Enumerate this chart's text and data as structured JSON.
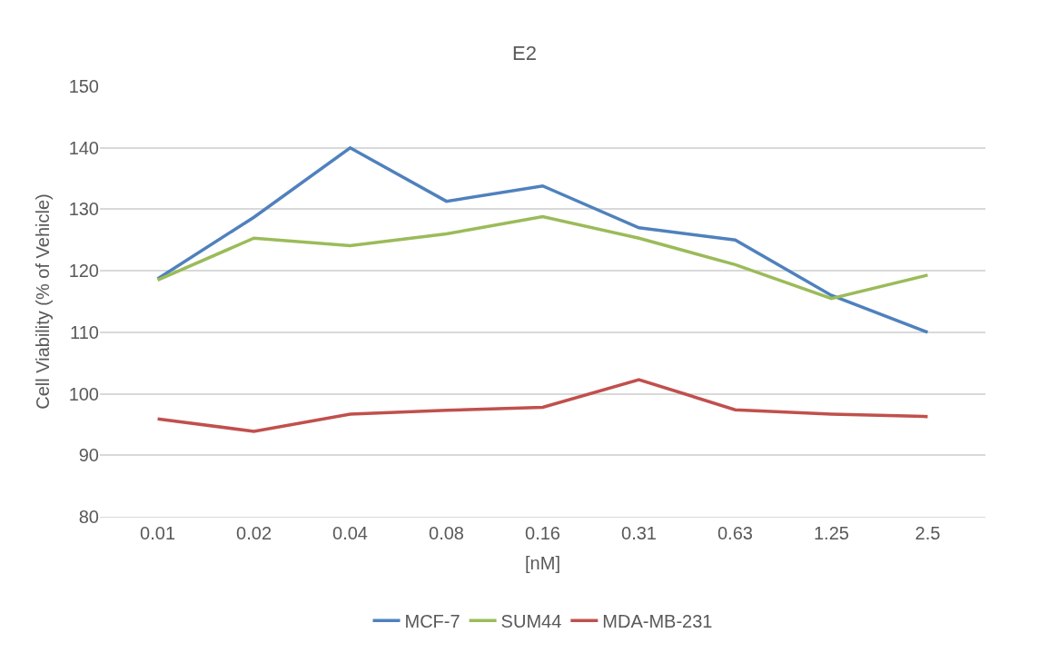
{
  "chart_data": {
    "type": "line",
    "title": "E2",
    "xlabel": "[nM]",
    "ylabel": "Cell Viability (% of Vehicle)",
    "categories": [
      "0.01",
      "0.02",
      "0.04",
      "0.08",
      "0.16",
      "0.31",
      "0.63",
      "1.25",
      "2.5"
    ],
    "series": [
      {
        "name": "MCF-7",
        "color": "#4f81bd",
        "values": [
          118.7,
          128.7,
          140,
          131.3,
          133.8,
          127,
          125,
          116,
          110
        ]
      },
      {
        "name": "SUM44",
        "color": "#9bbb59",
        "values": [
          118.5,
          125.3,
          124.1,
          126,
          128.8,
          125.3,
          121,
          115.5,
          119.3
        ]
      },
      {
        "name": "MDA-MB-231",
        "color": "#c0504d",
        "values": [
          95.9,
          93.9,
          96.7,
          97.3,
          97.8,
          102.3,
          97.4,
          96.7,
          96.3
        ]
      }
    ],
    "ylim": [
      80,
      150
    ],
    "yticks": [
      80,
      90,
      100,
      110,
      120,
      130,
      140,
      150
    ],
    "grid": "y",
    "legend": "bottom",
    "marker": "none",
    "line_style": "solid"
  }
}
